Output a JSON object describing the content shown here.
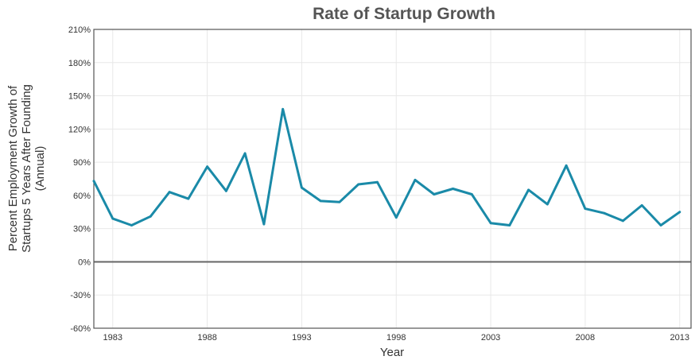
{
  "chart_data": {
    "type": "line",
    "title": "Rate of Startup Growth",
    "xlabel": "Year",
    "ylabel_lines": [
      "Percent Employment Growth of",
      "Startups 5 Years After Founding",
      "(Annual)"
    ],
    "xlim": [
      1982,
      2013.6
    ],
    "ylim": [
      -60,
      210
    ],
    "y_ticks": [
      -60,
      -30,
      0,
      30,
      60,
      90,
      120,
      150,
      180,
      210
    ],
    "y_tick_labels": [
      "-60%",
      "-30%",
      "0%",
      "30%",
      "60%",
      "90%",
      "120%",
      "150%",
      "180%",
      "210%"
    ],
    "x_ticks": [
      1983,
      1988,
      1993,
      1998,
      2003,
      2008,
      2013
    ],
    "x_tick_labels": [
      "1983",
      "1988",
      "1993",
      "1998",
      "2003",
      "2008",
      "2013"
    ],
    "grid": true,
    "line_color": "#1a8aa8",
    "series": [
      {
        "x": [
          1982,
          1983,
          1984,
          1985,
          1986,
          1987,
          1988,
          1989,
          1990,
          1991,
          1992,
          1993,
          1994,
          1995,
          1996,
          1997,
          1998,
          1999,
          2000,
          2001,
          2002,
          2003,
          2004,
          2005,
          2006,
          2007,
          2008,
          2009,
          2010,
          2011,
          2012,
          2013
        ],
        "values": [
          73,
          39,
          33,
          41,
          63,
          57,
          86,
          64,
          98,
          34,
          138,
          67,
          55,
          54,
          70,
          72,
          40,
          74,
          61,
          66,
          61,
          35,
          33,
          65,
          52,
          87,
          48,
          44,
          37,
          51,
          33,
          45
        ]
      }
    ]
  }
}
